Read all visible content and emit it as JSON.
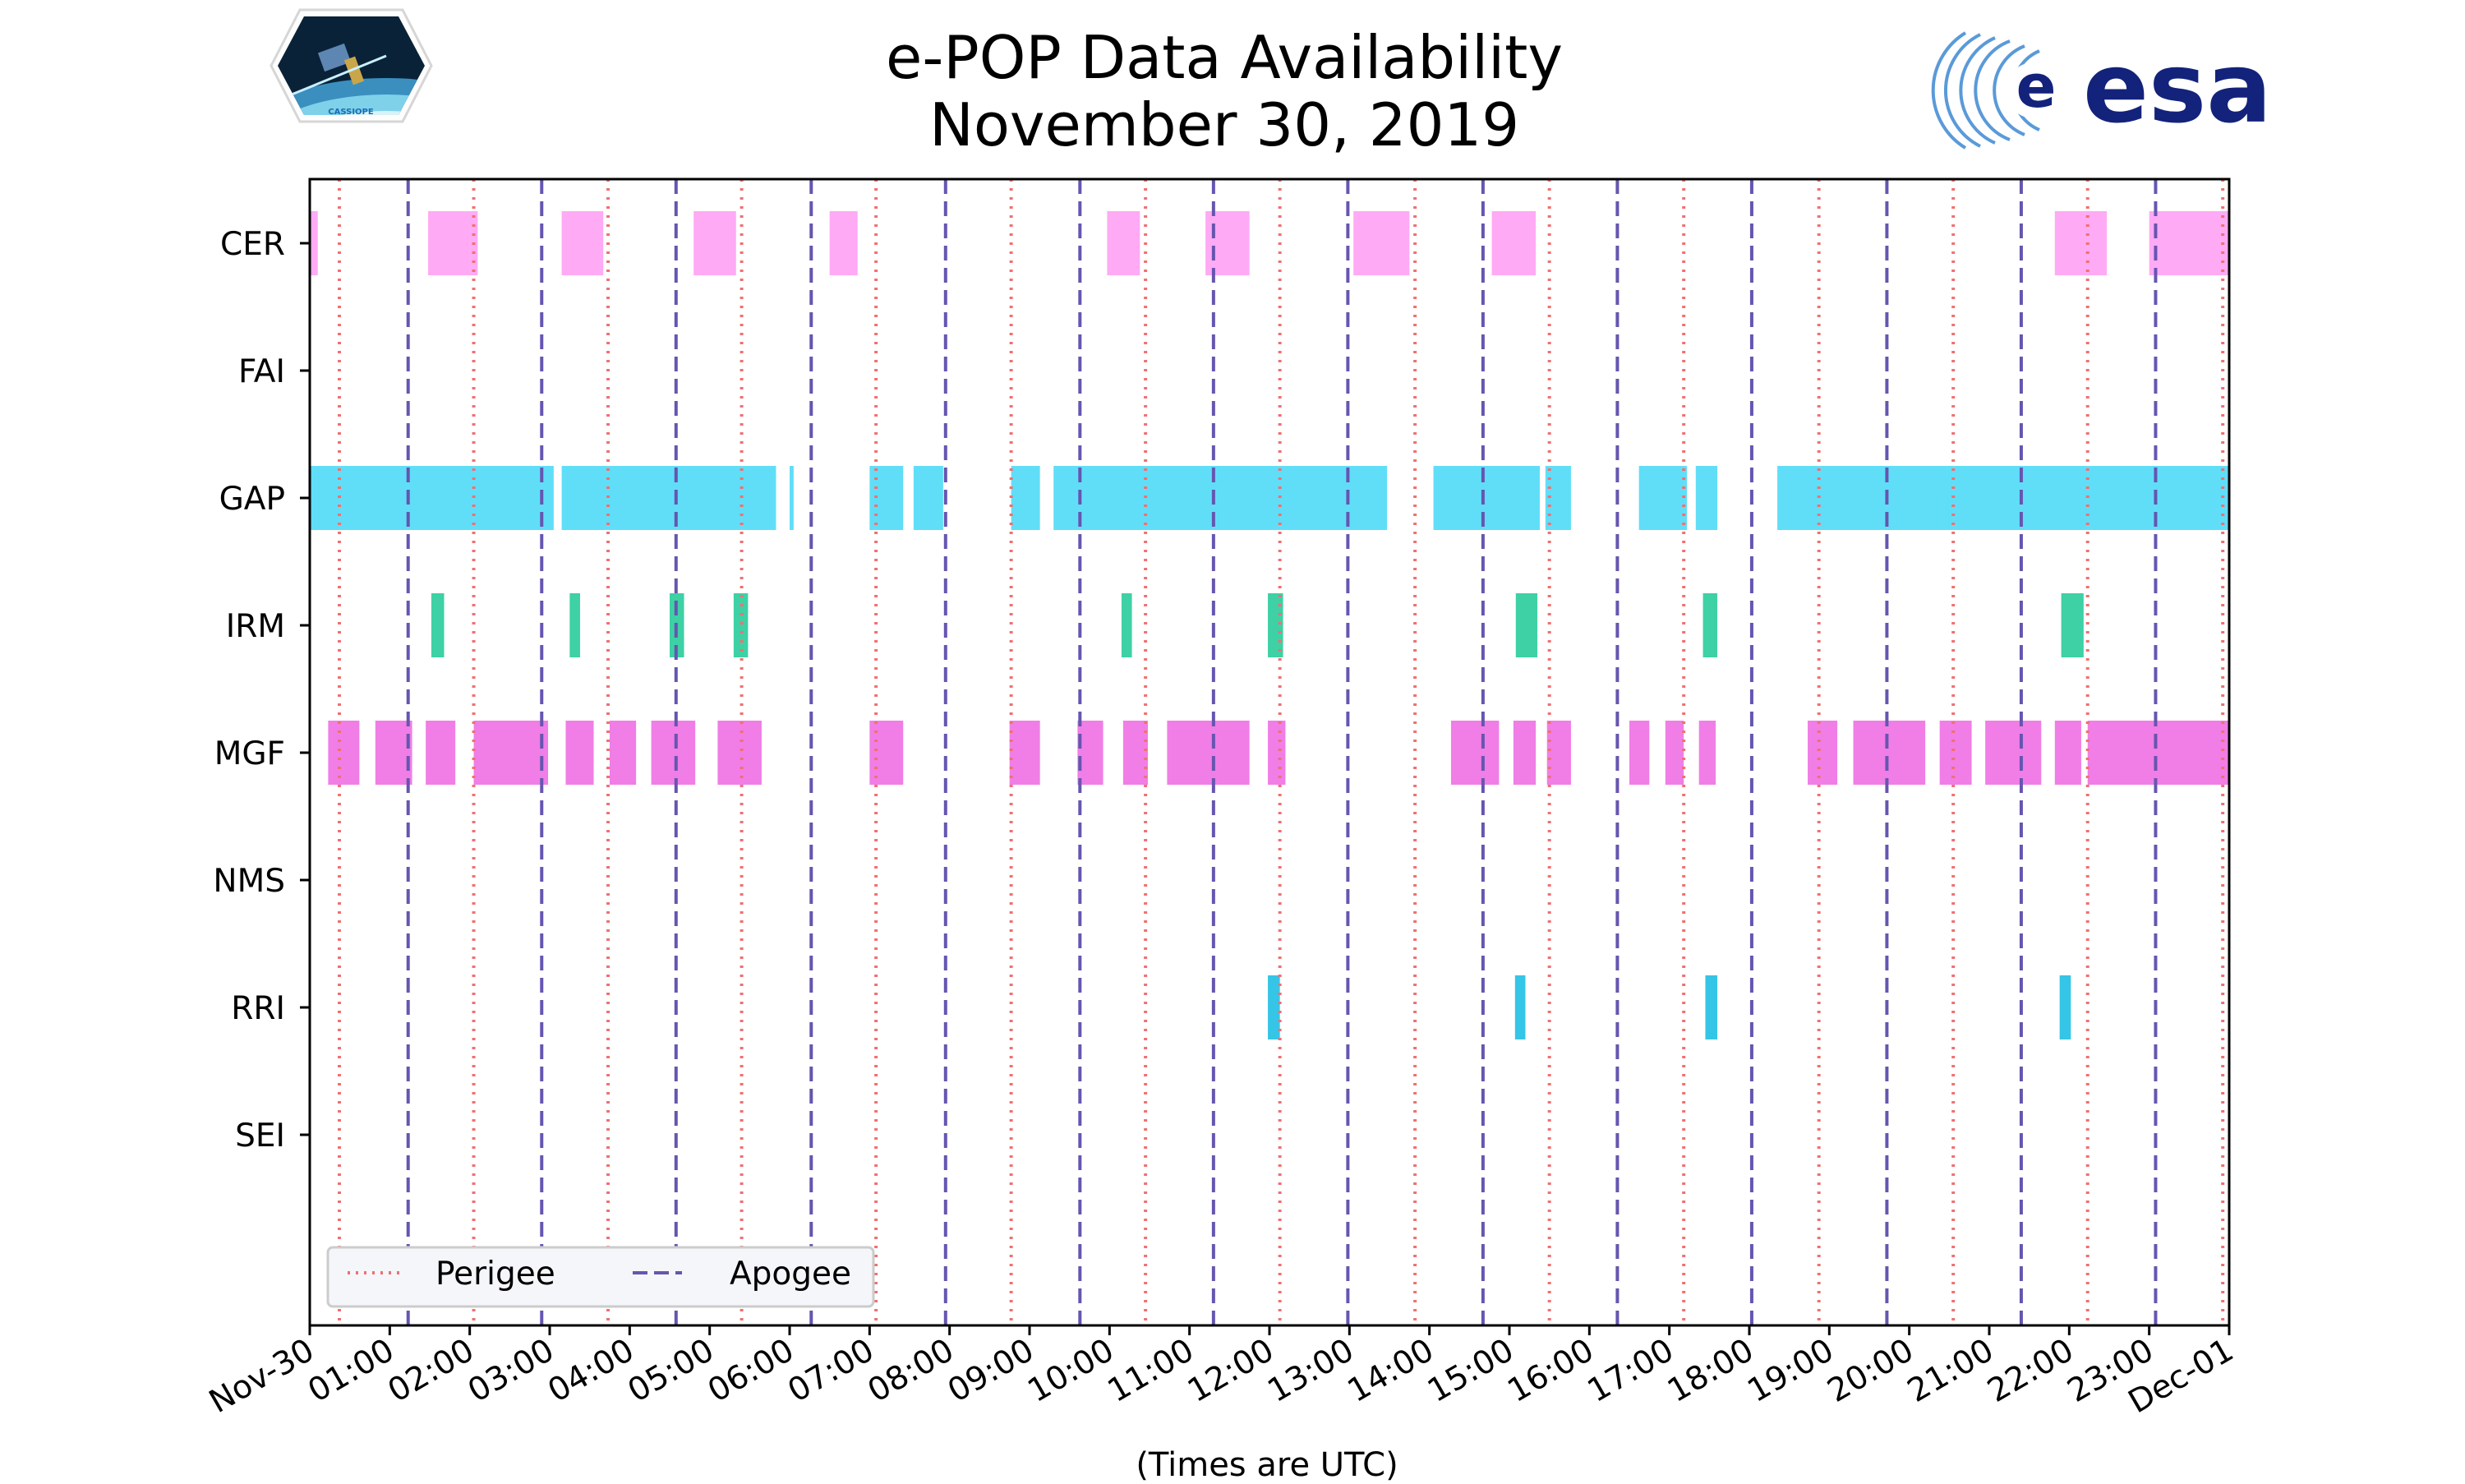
{
  "header": {
    "title_line1": "e-POP Data Availability",
    "title_line2": "November 30, 2019",
    "left_logo_text": "CASSIOPE",
    "right_logo_text": "esa"
  },
  "chart_data": {
    "type": "timeline",
    "title": "e-POP Data Availability November 30, 2019",
    "xlabel": "(Times are UTC)",
    "ylabel": "",
    "xlim_hours": [
      0,
      24
    ],
    "instruments": [
      "CER",
      "FAI",
      "GAP",
      "IRM",
      "MGF",
      "NMS",
      "RRI",
      "SEI"
    ],
    "x_tick_labels": [
      "Nov-30",
      "01:00",
      "02:00",
      "03:00",
      "04:00",
      "05:00",
      "06:00",
      "07:00",
      "08:00",
      "09:00",
      "10:00",
      "11:00",
      "12:00",
      "13:00",
      "14:00",
      "15:00",
      "16:00",
      "17:00",
      "18:00",
      "19:00",
      "20:00",
      "21:00",
      "22:00",
      "23:00",
      "Dec-01"
    ],
    "legend": {
      "placement": "bottom-left",
      "entries": [
        "Perigee",
        "Apogee"
      ]
    },
    "perigee_hours": [
      0.37,
      2.05,
      3.73,
      5.4,
      7.08,
      8.77,
      10.45,
      12.13,
      13.82,
      15.5,
      17.18,
      18.87,
      20.55,
      22.23,
      23.92
    ],
    "apogee_hours": [
      1.23,
      2.9,
      4.58,
      6.27,
      7.95,
      9.63,
      11.3,
      12.98,
      14.67,
      16.35,
      18.03,
      19.72,
      21.4,
      23.08
    ],
    "colors": {
      "CER": "#ffaaf4",
      "GAP": "#60def8",
      "IRM": "#3ed1a5",
      "MGF": "#f07ee6",
      "RRI": "#35c5e6",
      "perigee": "#f07070",
      "apogee": "#6655b0"
    },
    "intervals": {
      "CER": [
        [
          0.0,
          0.1
        ],
        [
          1.48,
          2.1
        ],
        [
          3.15,
          3.67
        ],
        [
          4.8,
          5.33
        ],
        [
          6.5,
          6.85
        ],
        [
          9.97,
          10.38
        ],
        [
          11.2,
          11.75
        ],
        [
          13.05,
          13.75
        ],
        [
          14.78,
          15.33
        ],
        [
          21.82,
          22.47
        ],
        [
          23.0,
          24.0
        ]
      ],
      "FAI": [],
      "GAP": [
        [
          0.0,
          3.05
        ],
        [
          3.15,
          5.83
        ],
        [
          6.0,
          6.05
        ],
        [
          7.0,
          7.42
        ],
        [
          7.55,
          7.92
        ],
        [
          8.77,
          9.13
        ],
        [
          9.3,
          13.47
        ],
        [
          14.05,
          15.38
        ],
        [
          15.45,
          15.77
        ],
        [
          16.62,
          17.22
        ],
        [
          17.33,
          17.6
        ],
        [
          18.35,
          24.0
        ]
      ],
      "IRM": [
        [
          1.52,
          1.68
        ],
        [
          3.25,
          3.38
        ],
        [
          4.5,
          4.68
        ],
        [
          5.3,
          5.48
        ],
        [
          10.15,
          10.28
        ],
        [
          11.98,
          12.17
        ],
        [
          15.08,
          15.35
        ],
        [
          17.42,
          17.6
        ],
        [
          21.9,
          22.18
        ]
      ],
      "MGF": [
        [
          0.23,
          0.62
        ],
        [
          0.82,
          1.28
        ],
        [
          1.45,
          1.82
        ],
        [
          2.05,
          2.98
        ],
        [
          3.2,
          3.55
        ],
        [
          3.75,
          4.08
        ],
        [
          4.27,
          4.82
        ],
        [
          5.1,
          5.65
        ],
        [
          7.0,
          7.42
        ],
        [
          8.75,
          9.13
        ],
        [
          9.6,
          9.92
        ],
        [
          10.17,
          10.48
        ],
        [
          10.72,
          11.75
        ],
        [
          11.98,
          12.2
        ],
        [
          14.27,
          14.87
        ],
        [
          15.05,
          15.33
        ],
        [
          15.47,
          15.77
        ],
        [
          16.5,
          16.75
        ],
        [
          16.95,
          17.18
        ],
        [
          17.37,
          17.58
        ],
        [
          18.73,
          19.1
        ],
        [
          19.3,
          20.2
        ],
        [
          20.38,
          20.78
        ],
        [
          20.95,
          21.65
        ],
        [
          21.82,
          22.15
        ],
        [
          22.23,
          24.0
        ]
      ],
      "NMS": [],
      "RRI": [
        [
          11.98,
          12.13
        ],
        [
          15.07,
          15.2
        ],
        [
          17.45,
          17.6
        ],
        [
          21.88,
          22.02
        ]
      ],
      "SEI": []
    }
  }
}
